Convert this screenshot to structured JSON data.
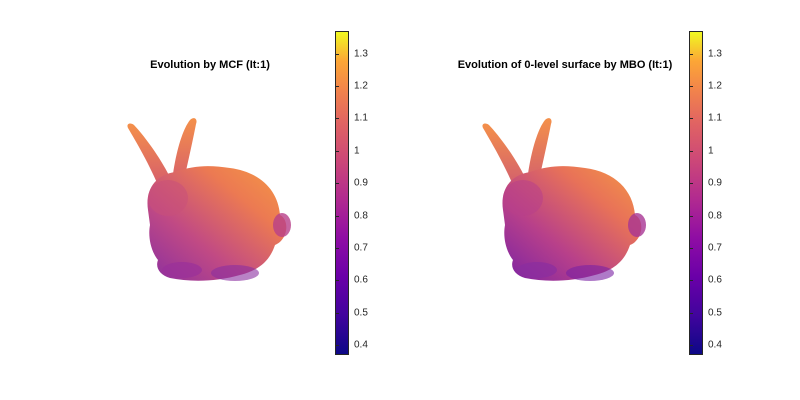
{
  "left_panel": {
    "title": "Evolution by MCF (It:1)"
  },
  "right_panel": {
    "title": "Evolution of 0-level surface by MBO (It:1)"
  },
  "colorbar": {
    "ticks": [
      "0.4",
      "0.5",
      "0.6",
      "0.7",
      "0.8",
      "0.9",
      "1",
      "1.1",
      "1.2",
      "1.3"
    ],
    "min": 0.37,
    "max": 1.37,
    "colormap": "plasma"
  },
  "colors": {
    "low": "#0d0887",
    "mid": "#cc4778",
    "high": "#f0f921",
    "surface": "#ef7f4e"
  }
}
